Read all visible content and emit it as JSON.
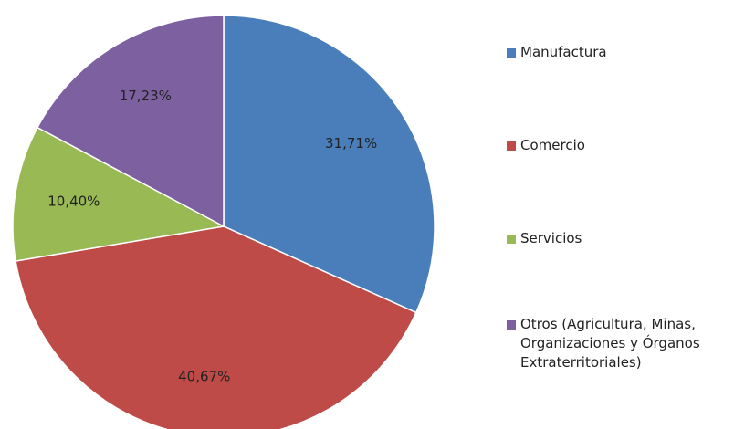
{
  "chart_data": {
    "type": "pie",
    "categories": [
      "Manufactura",
      "Comercio",
      "Servicios",
      "Otros (Agricultura, Minas, Organizaciones y Órganos Extraterritoriales)"
    ],
    "values": [
      31.71,
      40.67,
      10.4,
      17.23
    ],
    "value_labels": [
      "31,71%",
      "40,67%",
      "10,40%",
      "17,23%"
    ],
    "colors": [
      "#4a7ebb",
      "#be4b48",
      "#98b954",
      "#7d60a0"
    ],
    "legend": "right"
  }
}
